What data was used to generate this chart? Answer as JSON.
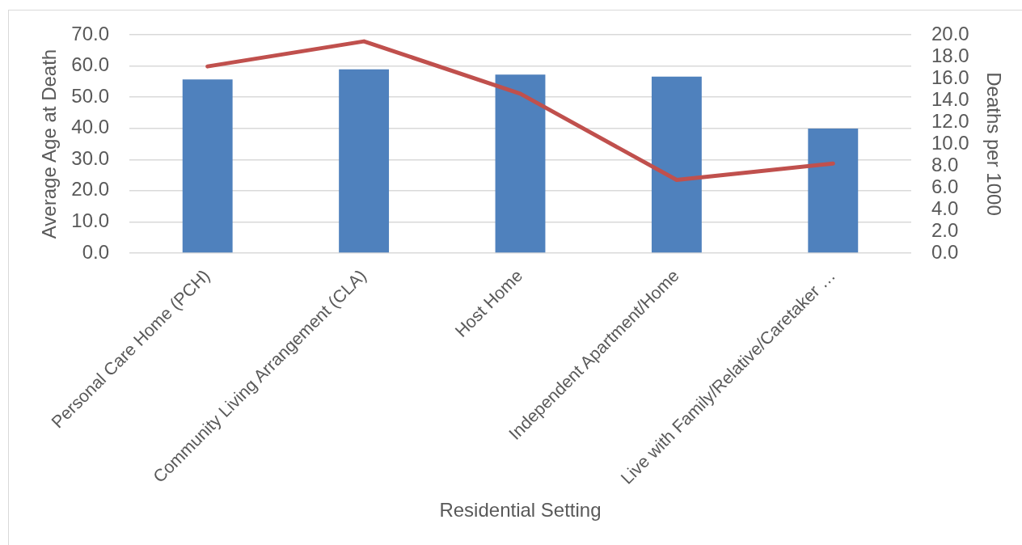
{
  "chart_data": {
    "type": "bar",
    "xlabel": "Residential Setting",
    "ylabel": "Average Age at Death",
    "y2label": "Deaths per 1000",
    "categories": [
      "Personal Care Home (PCH)",
      "Community Living Arrangement (CLA)",
      "Host Home",
      "Independent Apartment/Home",
      "Live with Family/Relative/Caretaker …"
    ],
    "series": [
      {
        "type": "bar",
        "color": "#4f81bd",
        "values": [
          55.7,
          58.9,
          57.2,
          56.6,
          39.9
        ]
      },
      {
        "type": "line",
        "axis": "y2",
        "color": "#c0504d",
        "values": [
          17.1,
          19.4,
          14.6,
          6.7,
          8.2
        ]
      }
    ],
    "ylim": [
      0,
      70
    ],
    "yticks": [
      {
        "value": 0,
        "label": "0.0"
      },
      {
        "value": 10,
        "label": "10.0"
      },
      {
        "value": 20,
        "label": "20.0"
      },
      {
        "value": 30,
        "label": "30.0"
      },
      {
        "value": 40,
        "label": "40.0"
      },
      {
        "value": 50,
        "label": "50.0"
      },
      {
        "value": 60,
        "label": "60.0"
      },
      {
        "value": 70,
        "label": "70.0"
      }
    ],
    "y2lim": [
      0,
      20
    ],
    "y2ticks": [
      {
        "value": 0,
        "label": "0.0"
      },
      {
        "value": 2,
        "label": "2.0"
      },
      {
        "value": 4,
        "label": "4.0"
      },
      {
        "value": 6,
        "label": "6.0"
      },
      {
        "value": 8,
        "label": "8.0"
      },
      {
        "value": 10,
        "label": "10.0"
      },
      {
        "value": 12,
        "label": "12.0"
      },
      {
        "value": 14,
        "label": "14.0"
      },
      {
        "value": 16,
        "label": "16.0"
      },
      {
        "value": 18,
        "label": "18.0"
      },
      {
        "value": 20,
        "label": "20.0"
      }
    ],
    "grid": "y",
    "marker": "none"
  }
}
